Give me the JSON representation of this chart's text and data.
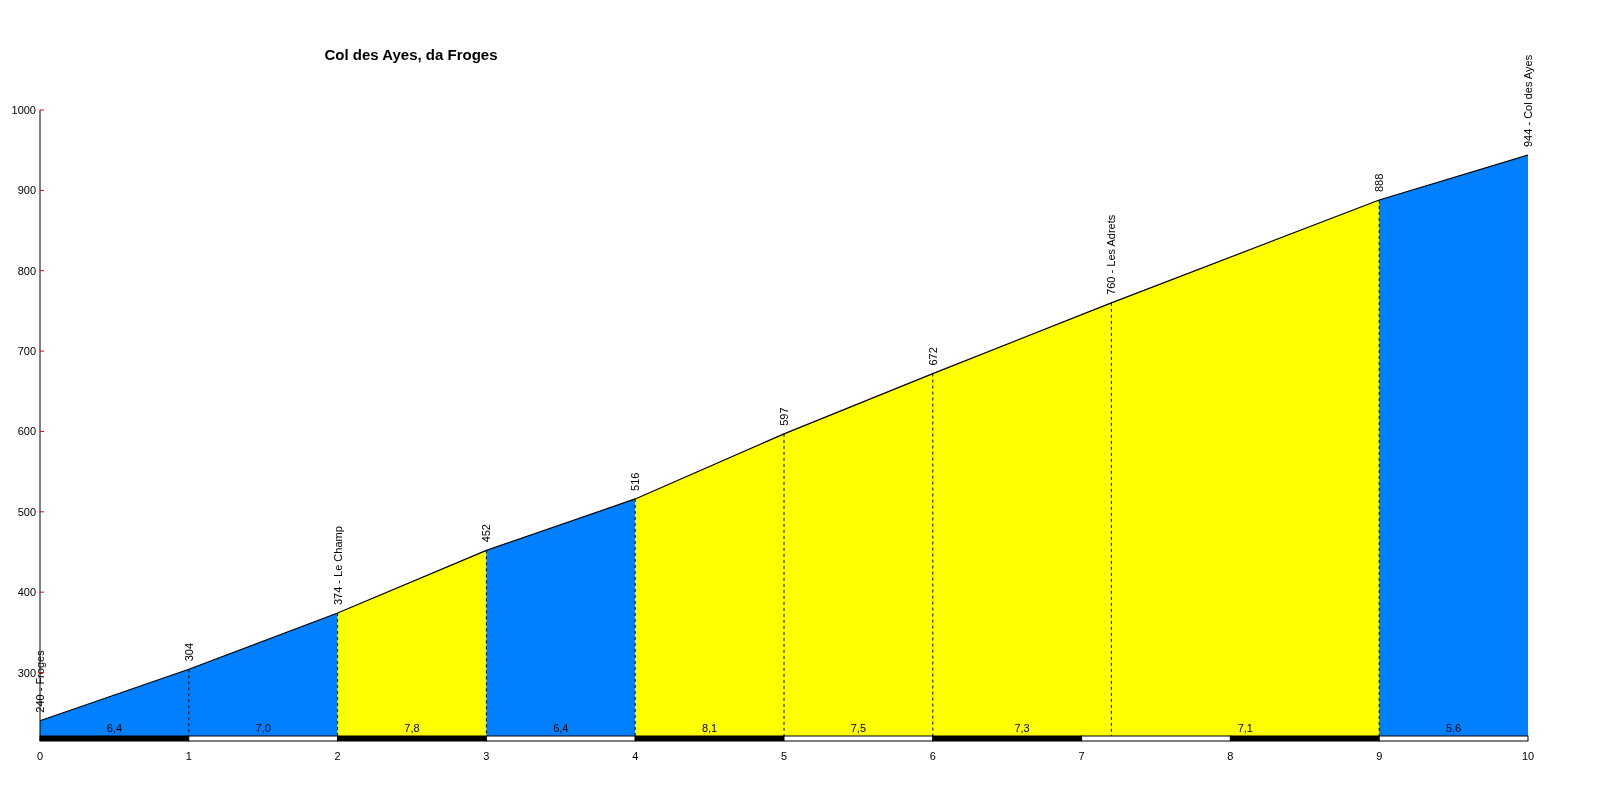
{
  "chart_data": {
    "type": "area",
    "title": "Col des Ayes, da Froges",
    "series": [
      {
        "color": "#0080ff",
        "x": [
          0,
          1,
          2
        ],
        "values": [
          240,
          304,
          374
        ]
      },
      {
        "color": "#ffff00",
        "x": [
          2,
          3
        ],
        "values": [
          374,
          452
        ]
      },
      {
        "color": "#0080ff",
        "x": [
          3,
          4
        ],
        "values": [
          452,
          516
        ]
      },
      {
        "color": "#ffff00",
        "x": [
          4,
          5,
          6,
          7.2,
          9
        ],
        "values": [
          516,
          597,
          672,
          760,
          888
        ]
      },
      {
        "color": "#0080ff",
        "x": [
          9,
          10
        ],
        "values": [
          888,
          944
        ]
      }
    ],
    "xlim": [
      0,
      10
    ],
    "xticks": [
      0,
      1,
      2,
      3,
      4,
      5,
      6,
      7,
      8,
      9,
      10
    ],
    "ylim": [
      221,
      1000
    ],
    "yticks": [
      300,
      400,
      500,
      600,
      700,
      800,
      900,
      1000
    ],
    "annotations": [
      {
        "text": "240 - Froges",
        "x": 0,
        "y": 240
      },
      {
        "text": "304",
        "x": 1,
        "y": 304
      },
      {
        "text": "374 - Le Champ",
        "x": 2,
        "y": 374
      },
      {
        "text": "452",
        "x": 3,
        "y": 452
      },
      {
        "text": "516",
        "x": 4,
        "y": 516
      },
      {
        "text": "597",
        "x": 5,
        "y": 597
      },
      {
        "text": "672",
        "x": 6,
        "y": 672
      },
      {
        "text": "760 - Les Adrets",
        "x": 7.2,
        "y": 760
      },
      {
        "text": "888",
        "x": 9,
        "y": 888
      },
      {
        "text": "944 - Col des Ayes",
        "x": 10,
        "y": 944
      },
      "6,4",
      "7,0",
      "7,8",
      "6,4",
      "8,1",
      "7,5",
      "7,3",
      "7,1",
      "5,6"
    ]
  }
}
